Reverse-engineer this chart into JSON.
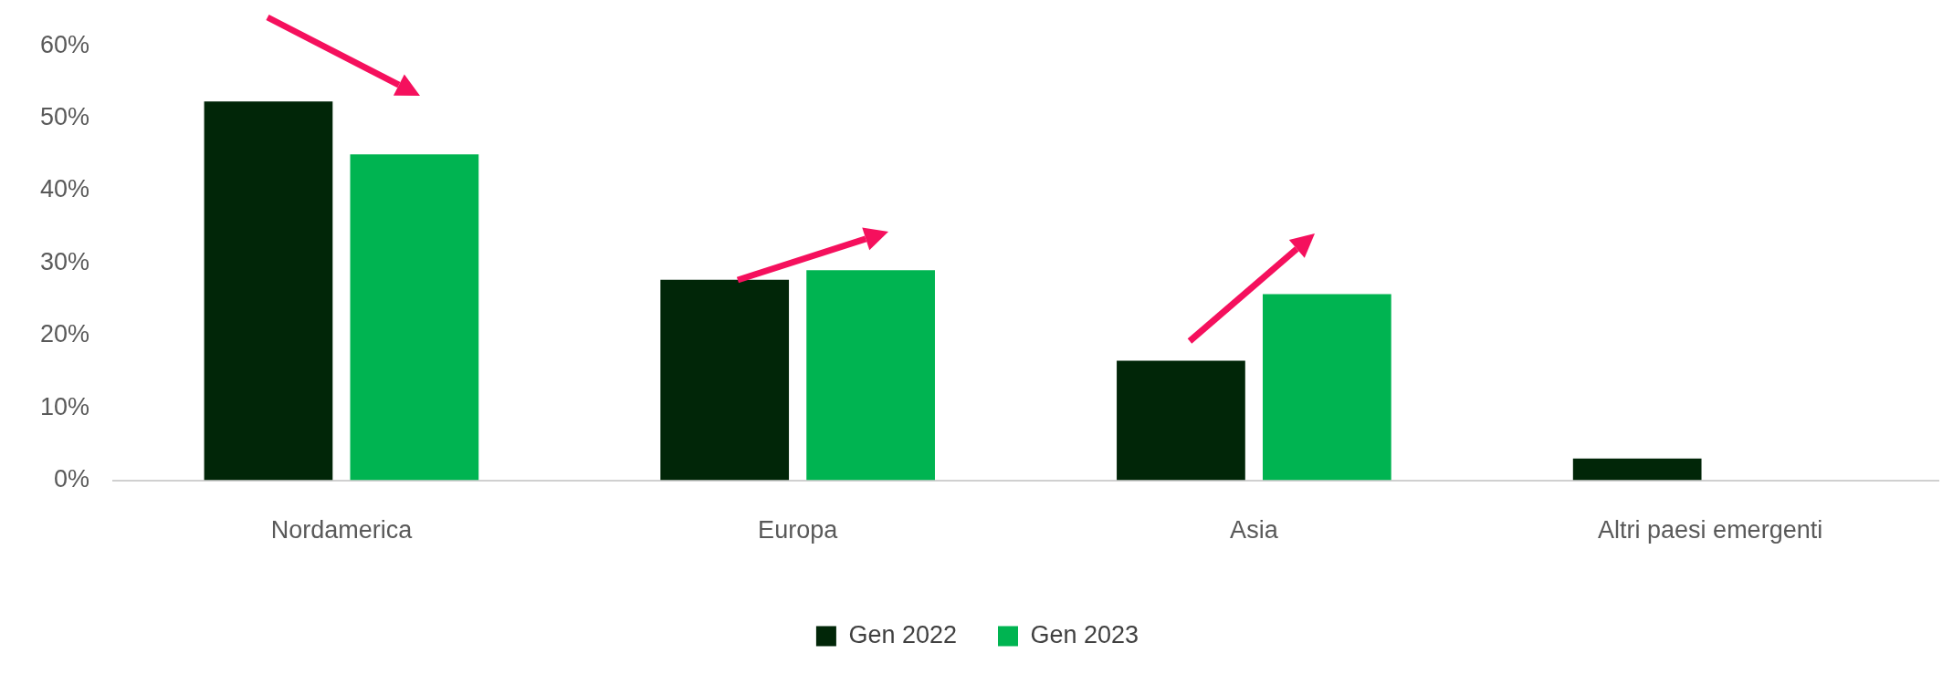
{
  "chart_data": {
    "type": "bar",
    "categories": [
      "Nordamerica",
      "Europa",
      "Asia",
      "Altri paesi emergenti"
    ],
    "series": [
      {
        "name": "Gen 2022",
        "color": "#012608",
        "values": [
          52.3,
          27.7,
          16.5,
          3
        ]
      },
      {
        "name": "Gen 2023",
        "color": "#00b451",
        "values": [
          45,
          29,
          25.7,
          null
        ]
      }
    ],
    "ylim": [
      0,
      60
    ],
    "yticks": [
      {
        "value": 0,
        "label": "0%"
      },
      {
        "value": 10,
        "label": "10%"
      },
      {
        "value": 20,
        "label": "20%"
      },
      {
        "value": 30,
        "label": "30%"
      },
      {
        "value": 40,
        "label": "40%"
      },
      {
        "value": 50,
        "label": "50%"
      },
      {
        "value": 60,
        "label": "60%"
      }
    ],
    "grid": false,
    "legend": "bottom"
  }
}
